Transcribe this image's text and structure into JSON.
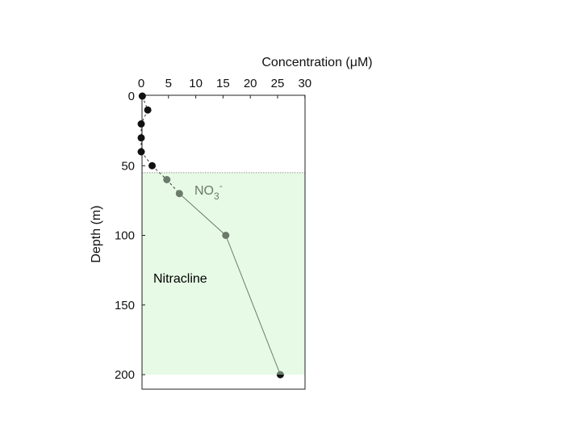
{
  "chart_data": {
    "type": "scatter",
    "x_label_main": "Concentration (",
    "x_label_unit_mu": "μ",
    "x_label_unit_rest": "M)",
    "ylabel": "Depth (m)",
    "xlim": [
      0,
      30
    ],
    "ylim": [
      0,
      210
    ],
    "y_inverted": true,
    "x_axis_position": "top",
    "x_ticks": [
      0,
      5,
      10,
      15,
      20,
      25,
      30
    ],
    "y_ticks": [
      0,
      50,
      100,
      150,
      200
    ],
    "grid": false,
    "region": {
      "label": "Nitracline",
      "depth_top": 55,
      "depth_bottom": 200,
      "color": "#e6fae6"
    },
    "series": [
      {
        "name_main": "NO",
        "name_sub": "3",
        "name_sup": "-",
        "color": "#6b7a6b",
        "points": [
          {
            "x": 0.2,
            "y": 0
          },
          {
            "x": 1.2,
            "y": 10
          },
          {
            "x": 0.0,
            "y": 20
          },
          {
            "x": 0.0,
            "y": 30
          },
          {
            "x": 0.0,
            "y": 40
          },
          {
            "x": 2.0,
            "y": 50
          },
          {
            "x": 4.7,
            "y": 60
          },
          {
            "x": 7.0,
            "y": 70
          },
          {
            "x": 15.5,
            "y": 100
          },
          {
            "x": 25.5,
            "y": 200
          }
        ],
        "colors": [
          "#111111",
          "#111111",
          "#111111",
          "#111111",
          "#111111",
          "#111111",
          "#6b7a6b",
          "#6b7a6b",
          "#6b7a6b",
          "#6b7a6b"
        ]
      }
    ]
  }
}
